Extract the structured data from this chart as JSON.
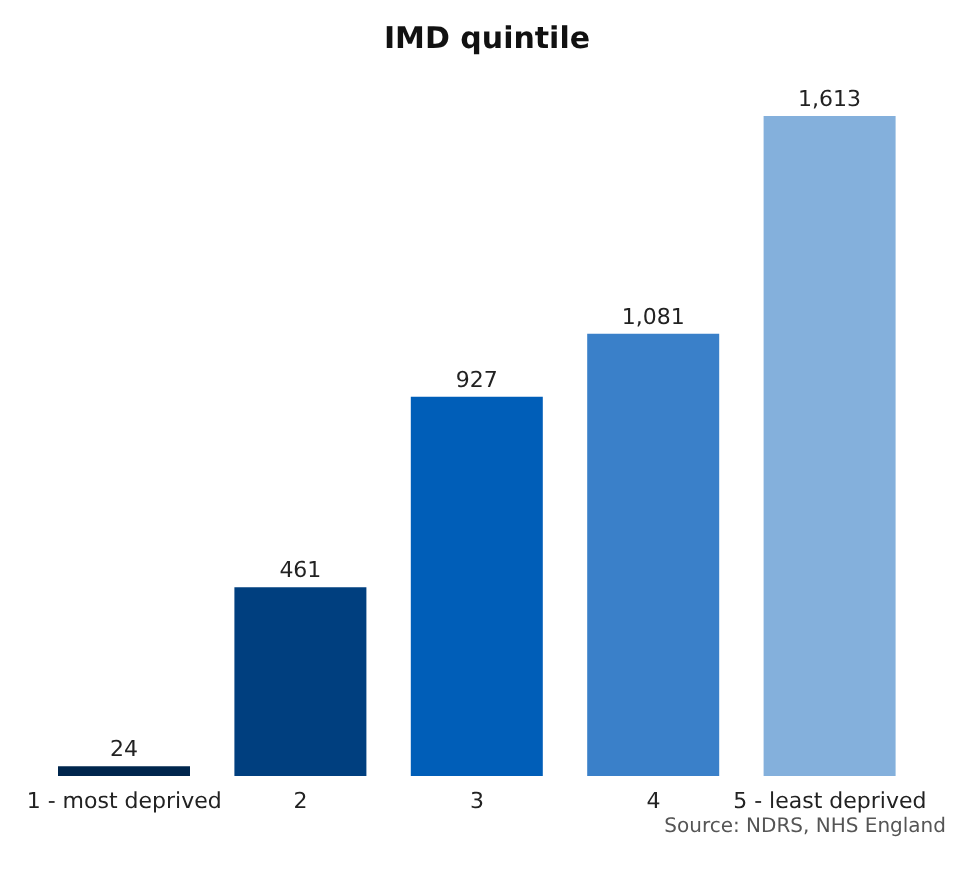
{
  "chart_data": {
    "type": "bar",
    "title": "IMD quintile",
    "categories": [
      "1 - most deprived",
      "2",
      "3",
      "4",
      "5 - least deprived"
    ],
    "values": [
      24,
      461,
      927,
      1081,
      1613
    ],
    "colors": [
      "#00264d",
      "#003f7f",
      "#005eb8",
      "#3a80c9",
      "#84b0dc"
    ],
    "value_labels": [
      "24",
      "461",
      "927",
      "1,081",
      "1,613"
    ],
    "tick_labels": "x",
    "annotations": [
      "Source: NDRS, NHS England"
    ]
  }
}
